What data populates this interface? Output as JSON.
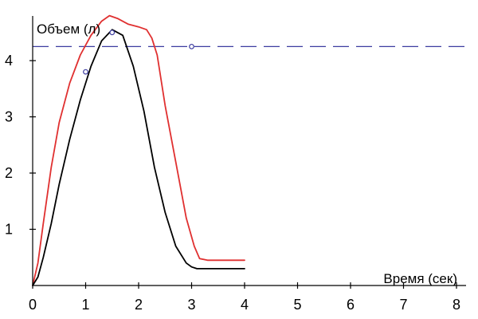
{
  "chart_data": {
    "type": "line",
    "ylabel": "Объем (л)",
    "xlabel": "Время (сек)",
    "xlim": [
      0,
      8
    ],
    "ylim": [
      0,
      4.8
    ],
    "x_ticks": [
      "0",
      "1",
      "2",
      "3",
      "4",
      "5",
      "6",
      "7",
      "8"
    ],
    "y_ticks": [
      "1",
      "2",
      "3",
      "4"
    ],
    "grid": false,
    "series": [
      {
        "color": "#e03030",
        "x": [
          0,
          0.1,
          0.2,
          0.35,
          0.5,
          0.7,
          0.9,
          1.1,
          1.3,
          1.45,
          1.6,
          1.8,
          2.0,
          2.15,
          2.25,
          2.35,
          2.5,
          2.7,
          2.9,
          3.05,
          3.15,
          3.3,
          3.6,
          4.0
        ],
        "y": [
          0,
          0.4,
          1.1,
          2.1,
          2.9,
          3.6,
          4.1,
          4.45,
          4.7,
          4.8,
          4.75,
          4.65,
          4.6,
          4.55,
          4.4,
          4.1,
          3.2,
          2.2,
          1.2,
          0.7,
          0.48,
          0.45,
          0.45,
          0.45
        ]
      },
      {
        "color": "#000000",
        "x": [
          0,
          0.1,
          0.2,
          0.35,
          0.5,
          0.7,
          0.9,
          1.1,
          1.3,
          1.5,
          1.7,
          1.9,
          2.1,
          2.3,
          2.5,
          2.7,
          2.9,
          3.0,
          3.1,
          3.2,
          3.5,
          4.0
        ],
        "y": [
          0,
          0.15,
          0.5,
          1.1,
          1.8,
          2.6,
          3.3,
          3.9,
          4.35,
          4.55,
          4.45,
          3.9,
          3.1,
          2.1,
          1.3,
          0.7,
          0.4,
          0.33,
          0.3,
          0.3,
          0.3,
          0.3
        ]
      }
    ],
    "reference_line": {
      "y": 4.25,
      "color": "#3c3ca0",
      "style": "dashed"
    },
    "markers": [
      {
        "x": 1.0,
        "y": 3.8,
        "color": "#3c3ca0"
      },
      {
        "x": 1.5,
        "y": 4.5,
        "color": "#3c3ca0"
      },
      {
        "x": 3.0,
        "y": 4.25,
        "color": "#3c3ca0"
      }
    ]
  }
}
